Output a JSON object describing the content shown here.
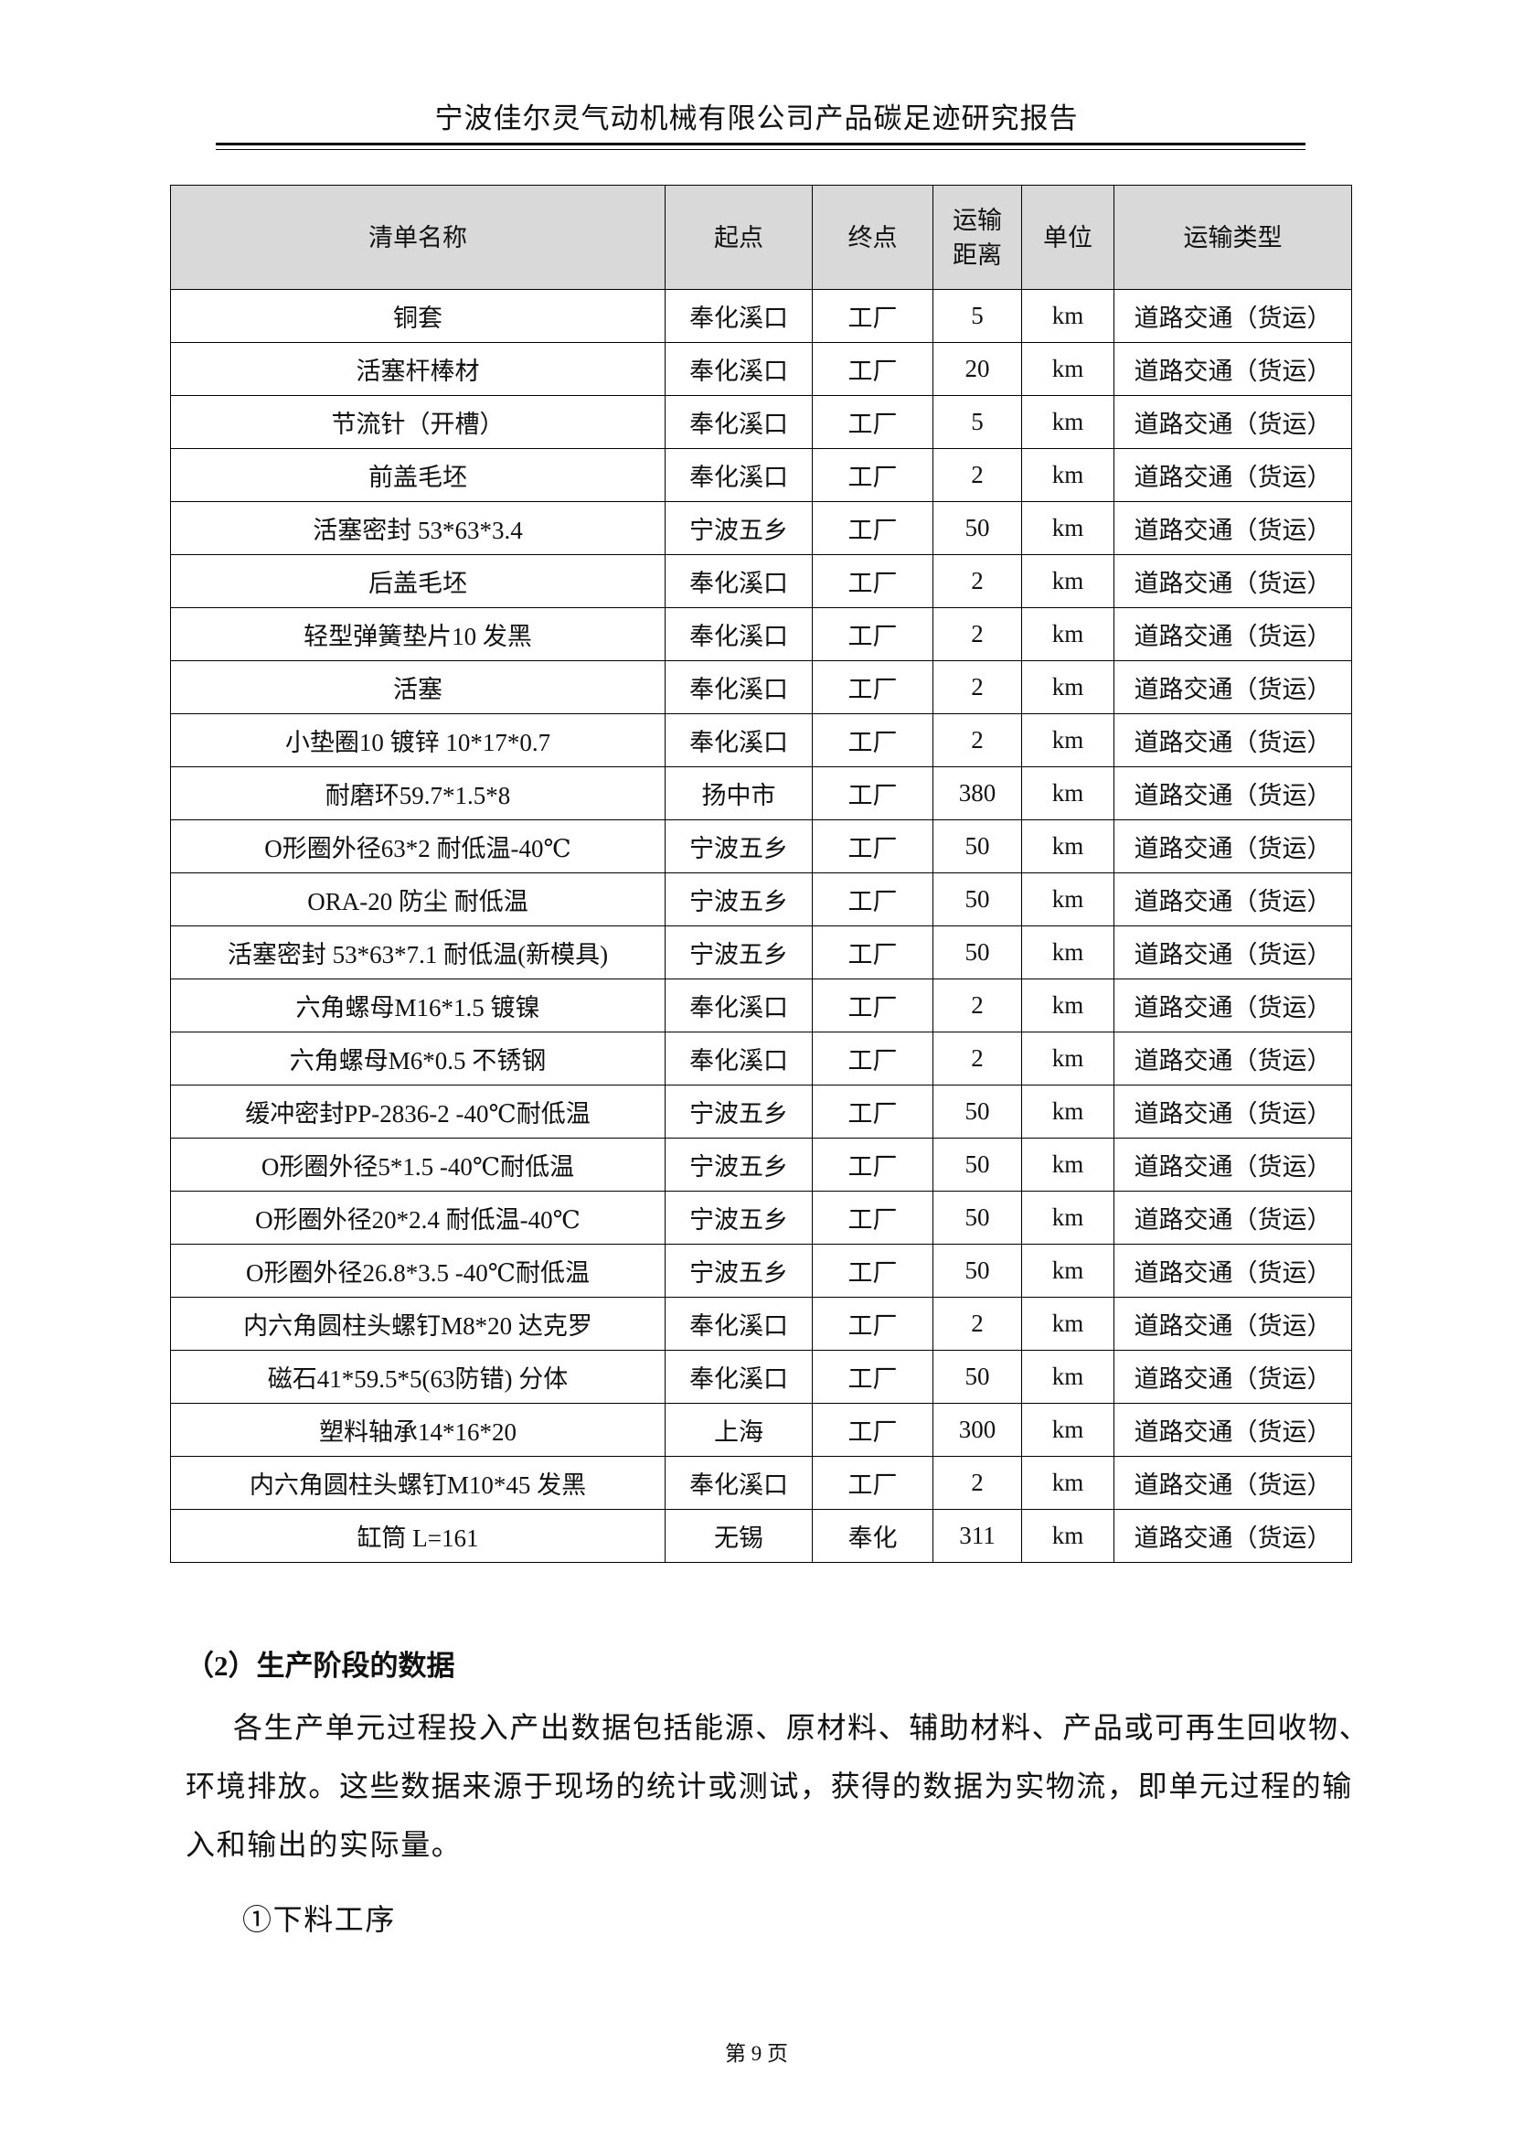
{
  "header": {
    "title": "宁波佳尔灵气动机械有限公司产品碳足迹研究报告"
  },
  "table": {
    "columns": [
      "清单名称",
      "起点",
      "终点",
      "运输距离",
      "单位",
      "运输类型"
    ],
    "rows": [
      [
        "铜套",
        "奉化溪口",
        "工厂",
        "5",
        "km",
        "道路交通（货运）"
      ],
      [
        "活塞杆棒材",
        "奉化溪口",
        "工厂",
        "20",
        "km",
        "道路交通（货运）"
      ],
      [
        "节流针（开槽）",
        "奉化溪口",
        "工厂",
        "5",
        "km",
        "道路交通（货运）"
      ],
      [
        "前盖毛坯",
        "奉化溪口",
        "工厂",
        "2",
        "km",
        "道路交通（货运）"
      ],
      [
        "活塞密封 53*63*3.4",
        "宁波五乡",
        "工厂",
        "50",
        "km",
        "道路交通（货运）"
      ],
      [
        "后盖毛坯",
        "奉化溪口",
        "工厂",
        "2",
        "km",
        "道路交通（货运）"
      ],
      [
        "轻型弹簧垫片10 发黑",
        "奉化溪口",
        "工厂",
        "2",
        "km",
        "道路交通（货运）"
      ],
      [
        "活塞",
        "奉化溪口",
        "工厂",
        "2",
        "km",
        "道路交通（货运）"
      ],
      [
        "小垫圈10 镀锌 10*17*0.7",
        "奉化溪口",
        "工厂",
        "2",
        "km",
        "道路交通（货运）"
      ],
      [
        "耐磨环59.7*1.5*8",
        "扬中市",
        "工厂",
        "380",
        "km",
        "道路交通（货运）"
      ],
      [
        "O形圈外径63*2 耐低温-40℃",
        "宁波五乡",
        "工厂",
        "50",
        "km",
        "道路交通（货运）"
      ],
      [
        "ORA-20 防尘  耐低温",
        "宁波五乡",
        "工厂",
        "50",
        "km",
        "道路交通（货运）"
      ],
      [
        "活塞密封 53*63*7.1 耐低温(新模具)",
        "宁波五乡",
        "工厂",
        "50",
        "km",
        "道路交通（货运）"
      ],
      [
        "六角螺母M16*1.5 镀镍",
        "奉化溪口",
        "工厂",
        "2",
        "km",
        "道路交通（货运）"
      ],
      [
        "六角螺母M6*0.5 不锈钢",
        "奉化溪口",
        "工厂",
        "2",
        "km",
        "道路交通（货运）"
      ],
      [
        "缓冲密封PP-2836-2 -40℃耐低温",
        "宁波五乡",
        "工厂",
        "50",
        "km",
        "道路交通（货运）"
      ],
      [
        "O形圈外径5*1.5 -40℃耐低温",
        "宁波五乡",
        "工厂",
        "50",
        "km",
        "道路交通（货运）"
      ],
      [
        "O形圈外径20*2.4 耐低温-40℃",
        "宁波五乡",
        "工厂",
        "50",
        "km",
        "道路交通（货运）"
      ],
      [
        "O形圈外径26.8*3.5 -40℃耐低温",
        "宁波五乡",
        "工厂",
        "50",
        "km",
        "道路交通（货运）"
      ],
      [
        "内六角圆柱头螺钉M8*20 达克罗",
        "奉化溪口",
        "工厂",
        "2",
        "km",
        "道路交通（货运）"
      ],
      [
        "磁石41*59.5*5(63防错) 分体",
        "奉化溪口",
        "工厂",
        "50",
        "km",
        "道路交通（货运）"
      ],
      [
        "塑料轴承14*16*20",
        "上海",
        "工厂",
        "300",
        "km",
        "道路交通（货运）"
      ],
      [
        "内六角圆柱头螺钉M10*45 发黑",
        "奉化溪口",
        "工厂",
        "2",
        "km",
        "道路交通（货运）"
      ],
      [
        "缸筒 L=161",
        "无锡",
        "奉化",
        "311",
        "km",
        "道路交通（货运）"
      ]
    ]
  },
  "section": {
    "heading": "（2）生产阶段的数据",
    "paragraph_lines": [
      "各生产单元过程投入产出数据包括能源、原材料、辅助材料、产品或可再生回收物、",
      "环境排放。这些数据来源于现场的统计或测试，获得的数据为实物流，即单元过程的输",
      "入和输出的实际量。"
    ],
    "subheading": "①下料工序"
  },
  "footer": {
    "page": "第 9 页"
  }
}
